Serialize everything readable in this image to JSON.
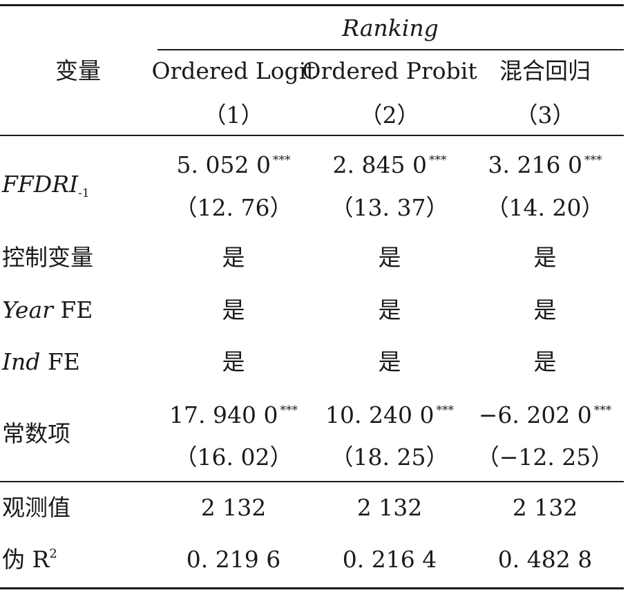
{
  "table": {
    "header": {
      "variable_label": "变量",
      "group_label": "Ranking",
      "models": [
        "Ordered Logit",
        "Ordered Probit",
        "混合回归"
      ],
      "model_numbers": [
        "（1）",
        "（2）",
        "（3）"
      ]
    },
    "rows": {
      "ffdri": {
        "label": "FFDRI",
        "label_sub": "-1",
        "coef": [
          "5. 052 0",
          "2. 845 0",
          "3. 216 0"
        ],
        "stars": [
          "***",
          "***",
          "***"
        ],
        "t": [
          "（12. 76）",
          "（13. 37）",
          "（14. 20）"
        ]
      },
      "controls": {
        "label": "控制变量",
        "values": [
          "是",
          "是",
          "是"
        ]
      },
      "year_fe": {
        "label_italic": "Year",
        "label_rest": " FE",
        "values": [
          "是",
          "是",
          "是"
        ]
      },
      "ind_fe": {
        "label_italic": "Ind",
        "label_rest": " FE",
        "values": [
          "是",
          "是",
          "是"
        ]
      },
      "constant": {
        "label": "常数项",
        "coef": [
          "17. 940 0",
          "10. 240 0",
          "−6. 202 0"
        ],
        "stars": [
          "***",
          "***",
          "***"
        ],
        "t": [
          "（16. 02）",
          "（18. 25）",
          "（−12. 25）"
        ]
      },
      "observations": {
        "label": "观测值",
        "values": [
          "2 132",
          "2 132",
          "2 132"
        ]
      },
      "pseudo_r2": {
        "label": "伪 R",
        "label_sup": "2",
        "values": [
          "0. 219 6",
          "0. 216 4",
          "0. 482 8"
        ]
      }
    }
  }
}
